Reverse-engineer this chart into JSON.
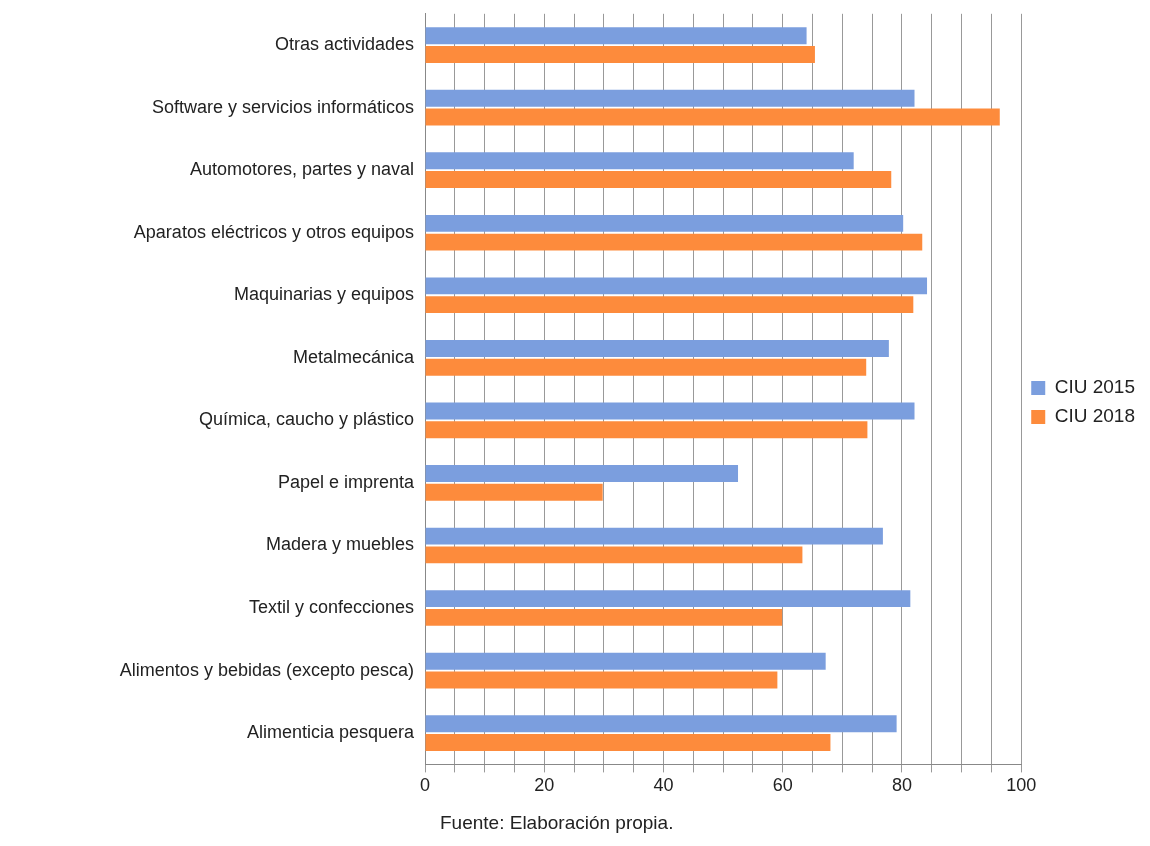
{
  "chart_data": {
    "type": "bar",
    "orientation": "horizontal",
    "categories": [
      "Otras actividades",
      "Software y servicios informáticos",
      "Automotores, partes y naval",
      "Aparatos eléctricos y otros equipos",
      "Maquinarias y equipos",
      "Metalmecánica",
      "Química, caucho y plástico",
      "Papel e imprenta",
      "Madera y muebles",
      "Textil y confecciones",
      "Alimentos y bebidas (excepto pesca)",
      "Alimenticia pesquera"
    ],
    "series": [
      {
        "name": "CIU 2015",
        "color": "#7b9ede",
        "values": [
          64,
          82.1,
          71.9,
          80.2,
          84.2,
          77.8,
          82.1,
          52.5,
          76.8,
          81.4,
          67.2,
          79.1
        ]
      },
      {
        "name": "CIU 2018",
        "color": "#fd8b3c",
        "values": [
          65.4,
          96.4,
          78.2,
          83.4,
          81.9,
          74,
          74.2,
          29.8,
          63.3,
          59.9,
          59.1,
          68
        ]
      }
    ],
    "xlim": [
      0,
      100
    ],
    "xticks": [
      0,
      {
        "value": 5,
        "label": null
      },
      {
        "value": 10,
        "label": null
      },
      {
        "value": 15,
        "label": null
      },
      20,
      {
        "value": 25,
        "label": null
      },
      {
        "value": 30,
        "label": null
      },
      {
        "value": 35,
        "label": null
      },
      40,
      {
        "value": 45,
        "label": null
      },
      {
        "value": 50,
        "label": null
      },
      {
        "value": 55,
        "label": null
      },
      60,
      {
        "value": 65,
        "label": null
      },
      {
        "value": 70,
        "label": null
      },
      {
        "value": 75,
        "label": null
      },
      80,
      {
        "value": 85,
        "label": null
      },
      {
        "value": 90,
        "label": null
      },
      {
        "value": 95,
        "label": null
      },
      100
    ],
    "grid": "x",
    "legend": "right",
    "annotations": [
      "Fuente: Elaboración propia."
    ]
  }
}
